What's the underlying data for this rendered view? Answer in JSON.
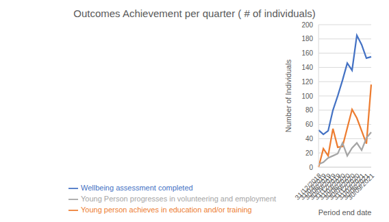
{
  "chart_data": {
    "type": "line",
    "title": "Outcomes Achievement per quarter ( # of individuals)",
    "x_label": "Period end date",
    "y_label": "Number of Individuals",
    "categories": [
      "31/12/2018",
      "31/03/2019",
      "30/06/2019",
      "30/09/2019",
      "31/12/2019",
      "31/03/2020",
      "30/06/2020",
      "30/09/2020",
      "31/12/2020",
      "31/03/2021",
      "30/06/2021",
      "30/09/2021"
    ],
    "series": [
      {
        "name": "Wellbeing assessment completed",
        "color": "#4472c4",
        "values": [
          52,
          46,
          51,
          80,
          100,
          122,
          146,
          136,
          185,
          172,
          153,
          155
        ]
      },
      {
        "name": "Young person achieves in education and/or training",
        "color": "#ed7d31",
        "values": [
          0,
          26,
          16,
          54,
          28,
          29,
          55,
          81,
          69,
          51,
          33,
          116
        ]
      },
      {
        "name": "Young Person progresses in volunteering and employment",
        "color": "#a5a5a5",
        "values": [
          4,
          7,
          13,
          16,
          19,
          34,
          16,
          27,
          34,
          24,
          41,
          49
        ]
      }
    ],
    "ylim": [
      0,
      200
    ],
    "yticks": [
      0,
      20,
      40,
      60,
      80,
      100,
      120,
      140,
      160,
      180,
      200
    ],
    "grid": true,
    "legend": "bottom"
  }
}
